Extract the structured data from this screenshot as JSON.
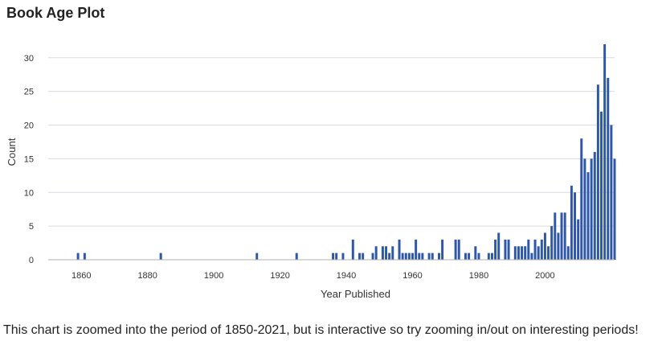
{
  "title": "Book Age Plot",
  "caption": "This chart is zoomed into the period of 1850-2021, but is interactive so try zooming in/out on interesting periods!",
  "colors": {
    "bar": "#2f57a8",
    "grid": "#d9dce3",
    "axis": "#b0b0b0",
    "text": "#333333"
  },
  "chart_data": {
    "type": "bar",
    "title": "Book Age Plot",
    "xlabel": "Year Published",
    "ylabel": "Count",
    "xlim": [
      1850,
      2021
    ],
    "ylim": [
      0,
      32
    ],
    "x_ticks": [
      1860,
      1880,
      1900,
      1920,
      1940,
      1960,
      1980,
      2000
    ],
    "y_ticks": [
      0,
      5,
      10,
      15,
      20,
      25,
      30
    ],
    "grid": "horizontal",
    "legend": "none",
    "points": [
      [
        1859,
        1
      ],
      [
        1861,
        1
      ],
      [
        1884,
        1
      ],
      [
        1913,
        1
      ],
      [
        1925,
        1
      ],
      [
        1936,
        1
      ],
      [
        1937,
        1
      ],
      [
        1939,
        1
      ],
      [
        1942,
        3
      ],
      [
        1944,
        1
      ],
      [
        1945,
        1
      ],
      [
        1948,
        1
      ],
      [
        1949,
        2
      ],
      [
        1951,
        2
      ],
      [
        1952,
        2
      ],
      [
        1953,
        1
      ],
      [
        1954,
        2
      ],
      [
        1956,
        3
      ],
      [
        1957,
        1
      ],
      [
        1958,
        1
      ],
      [
        1959,
        1
      ],
      [
        1960,
        1
      ],
      [
        1961,
        3
      ],
      [
        1962,
        1
      ],
      [
        1963,
        1
      ],
      [
        1965,
        1
      ],
      [
        1966,
        1
      ],
      [
        1968,
        1
      ],
      [
        1969,
        3
      ],
      [
        1973,
        3
      ],
      [
        1974,
        3
      ],
      [
        1976,
        1
      ],
      [
        1977,
        1
      ],
      [
        1979,
        2
      ],
      [
        1980,
        1
      ],
      [
        1983,
        1
      ],
      [
        1984,
        1
      ],
      [
        1985,
        3
      ],
      [
        1986,
        4
      ],
      [
        1988,
        3
      ],
      [
        1989,
        3
      ],
      [
        1991,
        2
      ],
      [
        1992,
        2
      ],
      [
        1993,
        2
      ],
      [
        1994,
        2
      ],
      [
        1995,
        3
      ],
      [
        1996,
        1
      ],
      [
        1997,
        3
      ],
      [
        1998,
        2
      ],
      [
        1999,
        3
      ],
      [
        2000,
        4
      ],
      [
        2001,
        2
      ],
      [
        2002,
        5
      ],
      [
        2003,
        7
      ],
      [
        2004,
        4
      ],
      [
        2005,
        7
      ],
      [
        2006,
        7
      ],
      [
        2007,
        2
      ],
      [
        2008,
        11
      ],
      [
        2009,
        10
      ],
      [
        2010,
        6
      ],
      [
        2011,
        18
      ],
      [
        2012,
        15
      ],
      [
        2013,
        13
      ],
      [
        2014,
        15
      ],
      [
        2015,
        16
      ],
      [
        2016,
        26
      ],
      [
        2017,
        22
      ],
      [
        2018,
        32
      ],
      [
        2019,
        27
      ],
      [
        2020,
        20
      ],
      [
        2021,
        15
      ]
    ]
  }
}
